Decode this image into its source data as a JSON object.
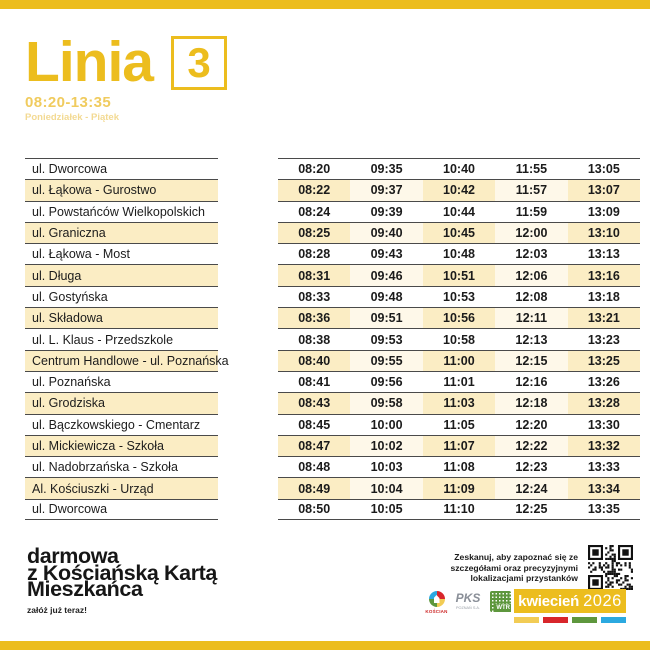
{
  "header": {
    "line_label": "Linia",
    "line_number": "3",
    "hours": "08:20-13:35",
    "days": "Poniedziałek - Piątek"
  },
  "timetable": {
    "rows": [
      {
        "stop": "ul. Dworcowa",
        "times": [
          "08:20",
          "09:35",
          "10:40",
          "11:55",
          "13:05"
        ]
      },
      {
        "stop": "ul. Łąkowa - Gurostwo",
        "times": [
          "08:22",
          "09:37",
          "10:42",
          "11:57",
          "13:07"
        ]
      },
      {
        "stop": "ul. Powstańców Wielkopolskich",
        "times": [
          "08:24",
          "09:39",
          "10:44",
          "11:59",
          "13:09"
        ]
      },
      {
        "stop": "ul. Graniczna",
        "times": [
          "08:25",
          "09:40",
          "10:45",
          "12:00",
          "13:10"
        ]
      },
      {
        "stop": "ul. Łąkowa - Most",
        "times": [
          "08:28",
          "09:43",
          "10:48",
          "12:03",
          "13:13"
        ]
      },
      {
        "stop": "ul. Długa",
        "times": [
          "08:31",
          "09:46",
          "10:51",
          "12:06",
          "13:16"
        ]
      },
      {
        "stop": "ul. Gostyńska",
        "times": [
          "08:33",
          "09:48",
          "10:53",
          "12:08",
          "13:18"
        ]
      },
      {
        "stop": "ul. Składowa",
        "times": [
          "08:36",
          "09:51",
          "10:56",
          "12:11",
          "13:21"
        ]
      },
      {
        "stop": "ul. L. Klaus - Przedszkole",
        "times": [
          "08:38",
          "09:53",
          "10:58",
          "12:13",
          "13:23"
        ]
      },
      {
        "stop": "Centrum Handlowe - ul. Poznańska",
        "times": [
          "08:40",
          "09:55",
          "11:00",
          "12:15",
          "13:25"
        ]
      },
      {
        "stop": "ul. Poznańska",
        "times": [
          "08:41",
          "09:56",
          "11:01",
          "12:16",
          "13:26"
        ]
      },
      {
        "stop": "ul. Grodziska",
        "times": [
          "08:43",
          "09:58",
          "11:03",
          "12:18",
          "13:28"
        ]
      },
      {
        "stop": "ul. Bączkowskiego - Cmentarz",
        "times": [
          "08:45",
          "10:00",
          "11:05",
          "12:20",
          "13:30"
        ]
      },
      {
        "stop": "ul. Mickiewicza - Szkoła",
        "times": [
          "08:47",
          "10:02",
          "11:07",
          "12:22",
          "13:32"
        ]
      },
      {
        "stop": "ul. Nadobrzańska - Szkoła",
        "times": [
          "08:48",
          "10:03",
          "11:08",
          "12:23",
          "13:33"
        ]
      },
      {
        "stop": "Al. Kościuszki - Urząd",
        "times": [
          "08:49",
          "10:04",
          "11:09",
          "12:24",
          "13:34"
        ]
      },
      {
        "stop": "ul. Dworcowa",
        "times": [
          "08:50",
          "10:05",
          "11:10",
          "12:25",
          "13:35"
        ]
      }
    ]
  },
  "footer": {
    "promo_line1": "darmowa",
    "promo_line2": "z Kościańską Kartą",
    "promo_line3": "Mieszkańca",
    "promo_sub": "załóż już teraz!",
    "scan_line1": "Zeskanuj, aby zapoznać się ze",
    "scan_line2": "szczegółami oraz precyzyjnymi",
    "scan_line3": "lokalizacjami przystanków",
    "logos": {
      "city": "KOŚCIAN",
      "pks": "PKS",
      "pks_sub": "POZNAŃ S.A.",
      "wtr": "WTR"
    },
    "month_badge": {
      "month": "kwiecień",
      "year": "2026"
    }
  },
  "colors": {
    "accent": "#ECBD1E",
    "accent_light": "#F0CB5E",
    "accent_lighter": "#F3DA93",
    "cream": "#FBEDC4",
    "cream_pale": "#FEF8E9",
    "line": "#4A4A4A",
    "bar_yellow": "#F2CC55",
    "red": "#D8262B",
    "green": "#5E973D",
    "blue": "#2BA9E0"
  }
}
